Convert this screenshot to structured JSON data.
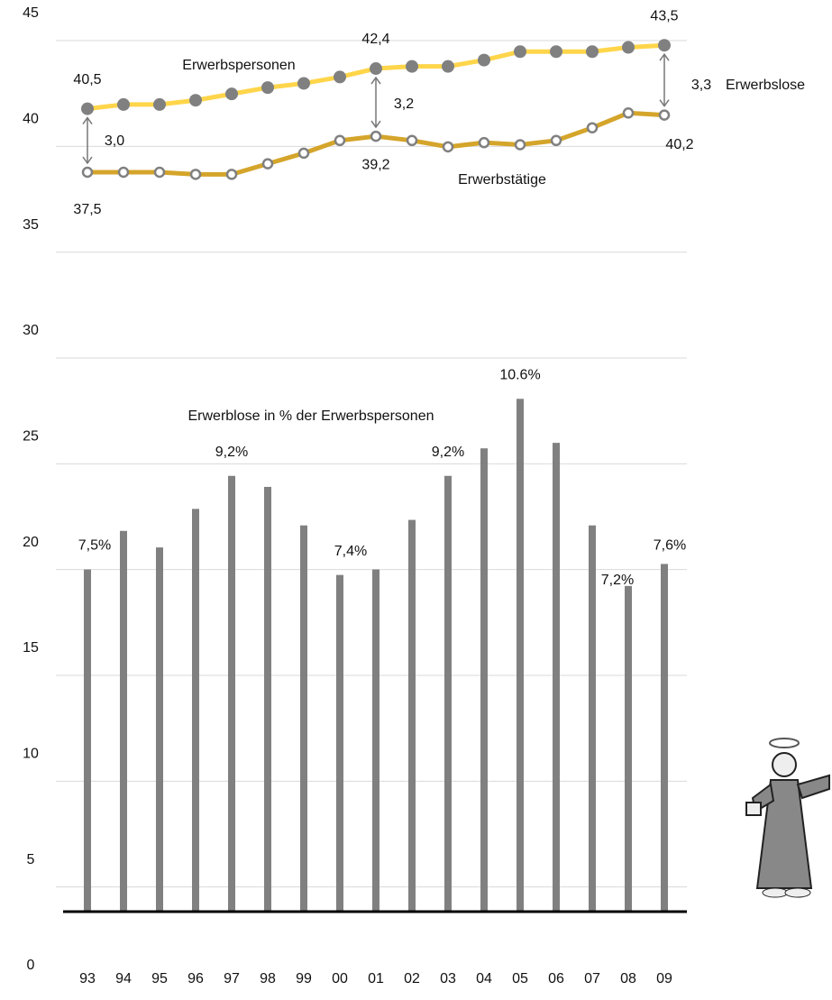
{
  "chart_data": {
    "type": "combo",
    "categories": [
      "93",
      "94",
      "95",
      "96",
      "97",
      "98",
      "99",
      "00",
      "01",
      "02",
      "03",
      "04",
      "05",
      "06",
      "07",
      "08",
      "09"
    ],
    "ylim": [
      0,
      45
    ],
    "yticks": [
      0,
      5,
      10,
      15,
      20,
      25,
      30,
      35,
      40,
      45
    ],
    "y2lim": [
      0.3,
      17.6
    ],
    "grid": true,
    "series": [
      {
        "name": "Erwerbspersonen",
        "type": "line",
        "color": "#ffd54a",
        "marker_color": "#808080",
        "values": [
          40.5,
          40.7,
          40.7,
          40.9,
          41.2,
          41.5,
          41.7,
          42.0,
          42.4,
          42.5,
          42.5,
          42.8,
          43.2,
          43.2,
          43.2,
          43.4,
          43.5
        ],
        "value_labels": [
          "40,5",
          null,
          null,
          null,
          null,
          null,
          null,
          null,
          "42,4",
          null,
          null,
          null,
          null,
          null,
          null,
          null,
          "43,5"
        ]
      },
      {
        "name": "Erwerbstätige",
        "type": "line",
        "color": "#d4a52a",
        "marker_color": "#ffffff",
        "values": [
          37.5,
          37.5,
          37.5,
          37.4,
          37.4,
          37.9,
          38.4,
          39.0,
          39.2,
          39.0,
          38.7,
          38.9,
          38.8,
          39.0,
          39.6,
          40.3,
          40.2
        ],
        "value_labels": [
          "37,5",
          null,
          null,
          null,
          null,
          null,
          null,
          null,
          "39,2",
          null,
          null,
          null,
          null,
          null,
          null,
          null,
          "40,2"
        ]
      },
      {
        "name": "Erwerblose in % der Erwerbspersonen",
        "type": "bar",
        "axis": "y2",
        "color": "#808080",
        "values": [
          7.5,
          8.2,
          7.9,
          8.6,
          9.2,
          9.0,
          8.3,
          7.4,
          7.5,
          8.4,
          9.2,
          9.7,
          10.6,
          9.8,
          8.3,
          7.2,
          7.6
        ],
        "value_labels": [
          "7,5%",
          null,
          null,
          null,
          "9,2%",
          null,
          null,
          "7,4%",
          null,
          null,
          "9,2%",
          null,
          "10.6%",
          null,
          null,
          "7,2%",
          "7,6%"
        ]
      }
    ],
    "annotations": [
      "3,0",
      "3,2",
      "3,3",
      "Erwerbslose"
    ]
  }
}
